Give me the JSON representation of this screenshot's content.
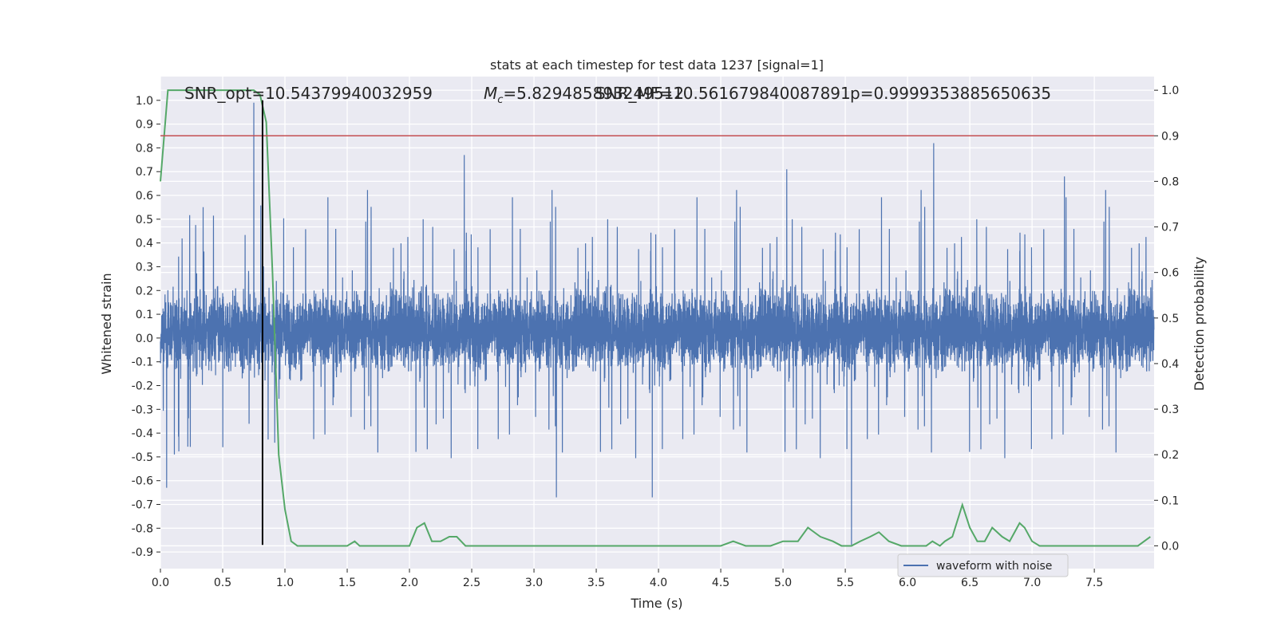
{
  "chart_data": {
    "type": "line",
    "title": "stats at each timestep for test data 1237 [signal=1]",
    "xlabel": "Time (s)",
    "ylabel_left": "Whitened strain",
    "ylabel_right": "Detection probability",
    "xlim": [
      0.0,
      7.98
    ],
    "ylim_left": [
      -0.97,
      1.1
    ],
    "ylim_right": [
      -0.05,
      1.03
    ],
    "x_ticks": [
      "0.0",
      "0.5",
      "1.0",
      "1.5",
      "2.0",
      "2.5",
      "3.0",
      "3.5",
      "4.0",
      "4.5",
      "5.0",
      "5.5",
      "6.0",
      "6.5",
      "7.0",
      "7.5"
    ],
    "y_left_ticks": [
      "-0.9",
      "-0.8",
      "-0.7",
      "-0.6",
      "-0.5",
      "-0.4",
      "-0.3",
      "-0.2",
      "-0.1",
      "0.0",
      "0.1",
      "0.2",
      "0.3",
      "0.4",
      "0.5",
      "0.6",
      "0.7",
      "0.8",
      "0.9",
      "1.0"
    ],
    "y_right_ticks": [
      "0.0",
      "0.1",
      "0.2",
      "0.3",
      "0.4",
      "0.5",
      "0.6",
      "0.7",
      "0.8",
      "0.9",
      "1.0"
    ],
    "grid": true,
    "legend": {
      "placement": "lower-right",
      "entries": [
        "waveform with noise"
      ]
    },
    "annotations": [
      "SNR_opt=10.54379940032959",
      "=5.829485893249512",
      "SNR_MF=10.561679840087891",
      "p=0.9999353885650635"
    ],
    "mc_symbol": "M",
    "mc_subscript": "c",
    "waveform": {
      "name": "waveform with noise",
      "color": "#4c72b0",
      "sample_spacing_s": 0.001,
      "envelope_typical": [
        -0.32,
        0.38
      ],
      "notable_spikes": [
        {
          "x": 0.75,
          "y": 0.99
        },
        {
          "x": 0.82,
          "y": -0.78
        },
        {
          "x": 2.44,
          "y": 0.77
        },
        {
          "x": 5.55,
          "y": -0.87
        },
        {
          "x": 6.21,
          "y": 0.82
        },
        {
          "x": 0.05,
          "y": -0.63
        },
        {
          "x": 3.18,
          "y": -0.67
        },
        {
          "x": 3.95,
          "y": -0.67
        },
        {
          "x": 5.03,
          "y": 0.71
        },
        {
          "x": 7.26,
          "y": 0.68
        }
      ]
    },
    "detection_probability": {
      "color": "#55a868",
      "x": [
        0.0,
        0.06,
        0.12,
        0.2,
        0.3,
        0.4,
        0.5,
        0.6,
        0.7,
        0.75,
        0.8,
        0.85,
        0.9,
        0.95,
        1.0,
        1.05,
        1.1,
        1.15,
        1.2,
        1.3,
        1.4,
        1.5,
        1.56,
        1.6,
        1.7,
        1.8,
        1.9,
        2.0,
        2.06,
        2.12,
        2.18,
        2.25,
        2.32,
        2.38,
        2.45,
        2.55,
        2.7,
        2.9,
        3.0,
        3.2,
        3.4,
        3.6,
        3.7,
        3.78,
        3.85,
        4.0,
        4.2,
        4.4,
        4.5,
        4.6,
        4.7,
        4.8,
        4.9,
        5.0,
        5.06,
        5.12,
        5.2,
        5.3,
        5.4,
        5.47,
        5.55,
        5.62,
        5.7,
        5.77,
        5.85,
        5.95,
        6.05,
        6.15,
        6.2,
        6.26,
        6.3,
        6.36,
        6.44,
        6.5,
        6.56,
        6.62,
        6.68,
        6.76,
        6.82,
        6.9,
        6.94,
        7.0,
        7.06,
        7.15,
        7.3,
        7.5,
        7.7,
        7.85,
        7.95
      ],
      "y": [
        0.8,
        1.0,
        1.0,
        1.0,
        1.0,
        1.0,
        1.0,
        1.0,
        1.0,
        1.0,
        0.99,
        0.93,
        0.6,
        0.2,
        0.08,
        0.01,
        0.0,
        0.0,
        0.0,
        0.0,
        0.0,
        0.0,
        0.01,
        0.0,
        0.0,
        0.0,
        0.0,
        0.0,
        0.04,
        0.05,
        0.01,
        0.01,
        0.02,
        0.02,
        0.0,
        0.0,
        0.0,
        0.0,
        0.0,
        0.0,
        0.0,
        0.0,
        0.0,
        0.0,
        0.0,
        0.0,
        0.0,
        0.0,
        0.0,
        0.01,
        0.0,
        0.0,
        0.0,
        0.01,
        0.01,
        0.01,
        0.04,
        0.02,
        0.01,
        0.0,
        0.0,
        0.01,
        0.02,
        0.03,
        0.01,
        0.0,
        0.0,
        0.0,
        0.01,
        0.0,
        0.01,
        0.02,
        0.09,
        0.04,
        0.01,
        0.01,
        0.04,
        0.02,
        0.01,
        0.05,
        0.04,
        0.01,
        0.0,
        0.0,
        0.0,
        0.0,
        0.0,
        0.0,
        0.02
      ]
    },
    "threshold_line": {
      "color": "#c44e52",
      "y": 0.9
    },
    "event_marker": {
      "color": "#000000",
      "x": 0.82,
      "y_range": [
        -0.87,
        1.0
      ]
    }
  }
}
